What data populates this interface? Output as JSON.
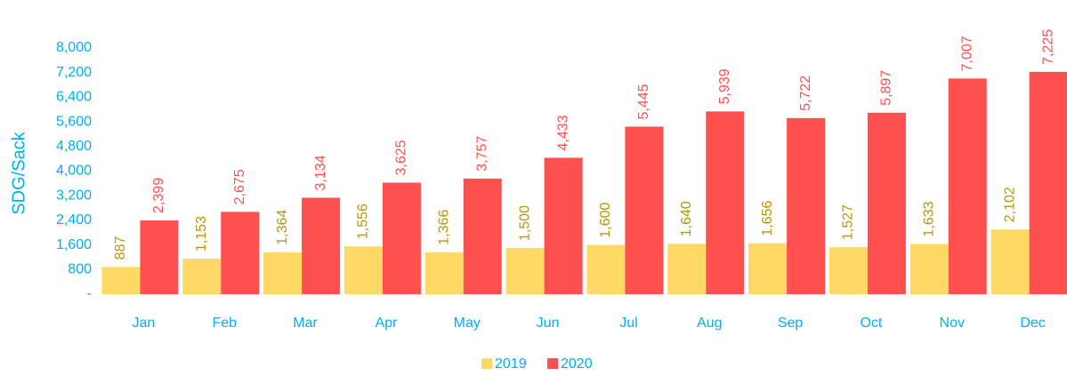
{
  "chart_data": {
    "type": "bar",
    "y_label": "SDG/Sack",
    "categories": [
      "Jan",
      "Feb",
      "Mar",
      "Apr",
      "May",
      "Jun",
      "Jul",
      "Aug",
      "Sep",
      "Oct",
      "Nov",
      "Dec"
    ],
    "series": [
      {
        "name": "2019",
        "color": "#ffd966",
        "label_color": "#b8960c",
        "values": [
          887,
          1153,
          1364,
          1556,
          1366,
          1500,
          1600,
          1640,
          1656,
          1527,
          1633,
          2102
        ],
        "value_labels": [
          "887",
          "1,153",
          "1,364",
          "1,556",
          "1,366",
          "1,500",
          "1,600",
          "1,640",
          "1,656",
          "1,527",
          "1,633",
          "2,102"
        ]
      },
      {
        "name": "2020",
        "color": "#ff5050",
        "label_color": "#ff5050",
        "values": [
          2399,
          2675,
          3134,
          3625,
          3757,
          4433,
          5445,
          5939,
          5722,
          5897,
          7007,
          7225
        ],
        "value_labels": [
          "2,399",
          "2,675",
          "3,134",
          "3,625",
          "3,757",
          "4,433",
          "5,445",
          "5,939",
          "5,722",
          "5,897",
          "7,007",
          "7,225"
        ]
      }
    ],
    "ylim": [
      0,
      8000
    ],
    "yticks": [
      {
        "value": 0,
        "label": "-"
      },
      800,
      {
        "value": 1600,
        "label": "1,600"
      },
      {
        "value": 2400,
        "label": "2,400"
      },
      {
        "value": 3200,
        "label": "3,200"
      },
      {
        "value": 4000,
        "label": "4,000"
      },
      {
        "value": 4800,
        "label": "4,800"
      },
      {
        "value": 5600,
        "label": "5,600"
      },
      {
        "value": 6400,
        "label": "6,400"
      },
      {
        "value": 7200,
        "label": "7,200"
      },
      {
        "value": 8000,
        "label": "8,000"
      }
    ],
    "axis_color": "#00b0f0",
    "legend": "bottom"
  }
}
